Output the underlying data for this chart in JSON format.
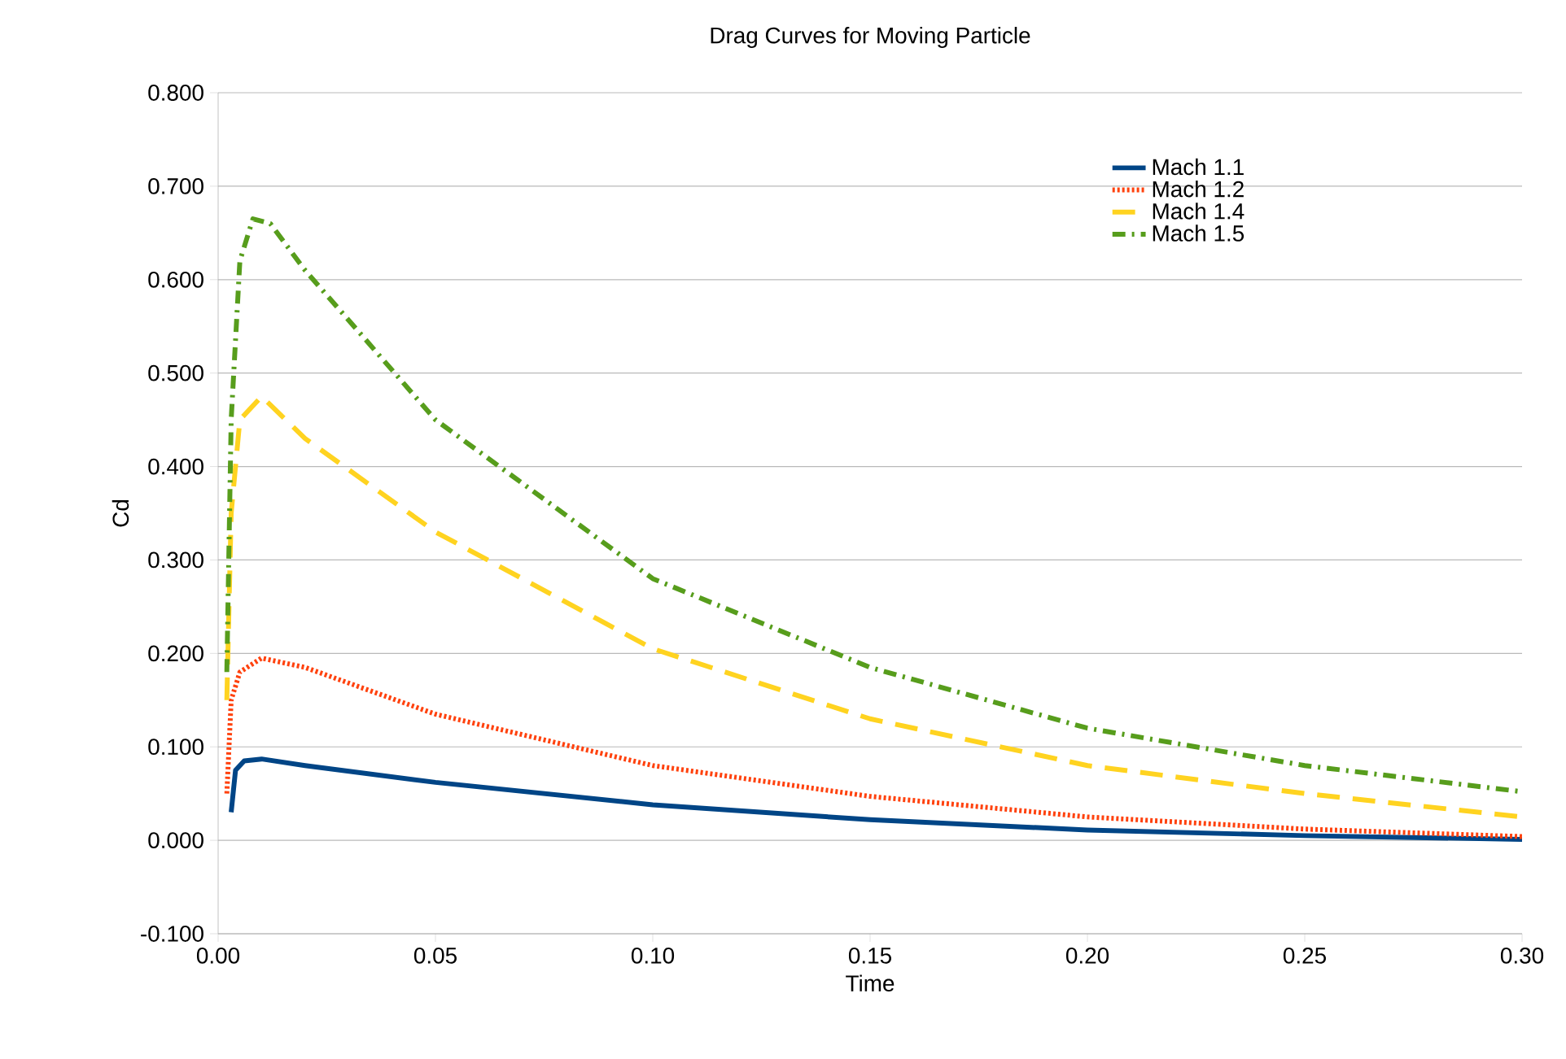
{
  "chart_data": {
    "type": "line",
    "title": "Drag Curves for Moving Particle",
    "xlabel": "Time",
    "ylabel": "Cd",
    "xlim": [
      0,
      0.3
    ],
    "ylim": [
      -0.1,
      0.8
    ],
    "xticks": [
      {
        "value": 0,
        "label": "0.00"
      },
      {
        "value": 0.05,
        "label": "0.05"
      },
      {
        "value": 0.1,
        "label": "0.10"
      },
      {
        "value": 0.15,
        "label": "0.15"
      },
      {
        "value": 0.2,
        "label": "0.20"
      },
      {
        "value": 0.25,
        "label": "0.25"
      },
      {
        "value": 0.3,
        "label": "0.30"
      }
    ],
    "yticks": [
      {
        "value": -0.1,
        "label": "-0.100"
      },
      {
        "value": 0,
        "label": "0.000"
      },
      {
        "value": 0.1,
        "label": "0.100"
      },
      {
        "value": 0.2,
        "label": "0.200"
      },
      {
        "value": 0.3,
        "label": "0.300"
      },
      {
        "value": 0.4,
        "label": "0.400"
      },
      {
        "value": 0.5,
        "label": "0.500"
      },
      {
        "value": 0.6,
        "label": "0.600"
      },
      {
        "value": 0.7,
        "label": "0.700"
      },
      {
        "value": 0.8,
        "label": "0.800"
      }
    ],
    "grid": "y",
    "legend": "top right",
    "series": [
      {
        "name": "Mach 1.1",
        "color": "#004586",
        "line_style": "solid",
        "x": [
          0.003,
          0.004,
          0.006,
          0.01,
          0.02,
          0.05,
          0.1,
          0.15,
          0.2,
          0.25,
          0.3
        ],
        "values": [
          0.03,
          0.075,
          0.085,
          0.087,
          0.08,
          0.062,
          0.038,
          0.022,
          0.011,
          0.005,
          0.001
        ]
      },
      {
        "name": "Mach 1.2",
        "color": "#ff420e",
        "line_style": "dotted",
        "x": [
          0.002,
          0.003,
          0.005,
          0.01,
          0.02,
          0.05,
          0.1,
          0.15,
          0.2,
          0.25,
          0.3
        ],
        "values": [
          0.05,
          0.15,
          0.18,
          0.195,
          0.185,
          0.135,
          0.08,
          0.047,
          0.025,
          0.012,
          0.004
        ]
      },
      {
        "name": "Mach 1.4",
        "color": "#ffd320",
        "line_style": "dashed",
        "x": [
          0.002,
          0.003,
          0.005,
          0.01,
          0.02,
          0.05,
          0.1,
          0.15,
          0.2,
          0.25,
          0.3
        ],
        "values": [
          0.15,
          0.35,
          0.45,
          0.475,
          0.43,
          0.33,
          0.205,
          0.13,
          0.08,
          0.05,
          0.025
        ]
      },
      {
        "name": "Mach 1.5",
        "color": "#579d1c",
        "line_style": "dashdot",
        "x": [
          0.002,
          0.003,
          0.005,
          0.008,
          0.012,
          0.02,
          0.05,
          0.1,
          0.15,
          0.2,
          0.25,
          0.3
        ],
        "values": [
          0.18,
          0.45,
          0.62,
          0.665,
          0.66,
          0.61,
          0.45,
          0.28,
          0.185,
          0.12,
          0.08,
          0.052
        ]
      }
    ]
  }
}
